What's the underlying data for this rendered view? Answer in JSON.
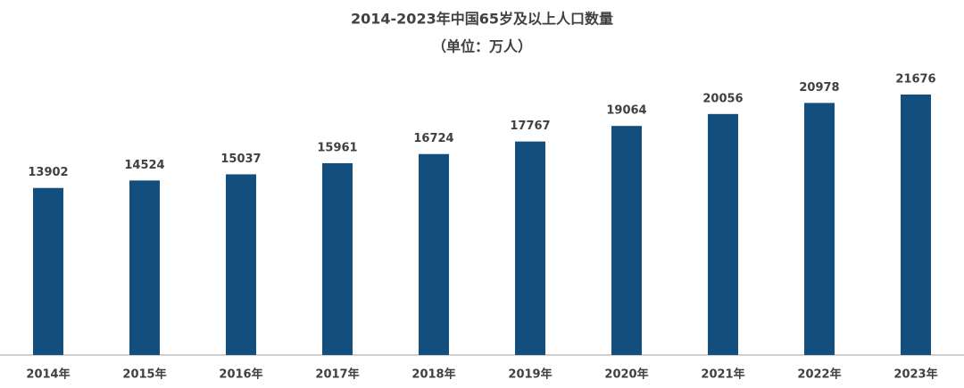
{
  "chart_data": {
    "type": "bar",
    "title": "2014-2023年中国65岁及以上人口数量",
    "subtitle": "（单位：万人）",
    "categories": [
      "2014年",
      "2015年",
      "2016年",
      "2017年",
      "2018年",
      "2019年",
      "2020年",
      "2021年",
      "2022年",
      "2023年"
    ],
    "values": [
      13902,
      14524,
      15037,
      15961,
      16724,
      17767,
      19064,
      20056,
      20978,
      21676
    ],
    "color": "#124e7e"
  }
}
